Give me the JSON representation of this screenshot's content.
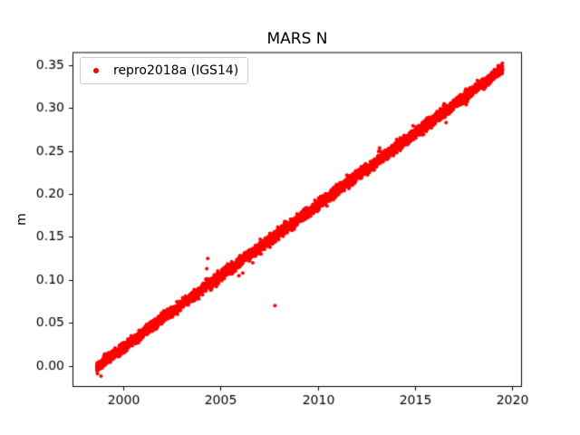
{
  "chart_data": {
    "type": "scatter",
    "title": "MARS N",
    "xlabel": "",
    "ylabel": "m",
    "grid": false,
    "legend_position": "upper-left",
    "legend": [
      {
        "label": "repro2018a (IGS14)",
        "color": "#ff0000",
        "marker": "dot"
      }
    ],
    "xlim": [
      1997.4,
      2020.5
    ],
    "ylim": [
      -0.0245,
      0.365
    ],
    "x_ticks": [
      {
        "value": 2000,
        "label": "2000"
      },
      {
        "value": 2005,
        "label": "2005"
      },
      {
        "value": 2010,
        "label": "2010"
      },
      {
        "value": 2015,
        "label": "2015"
      },
      {
        "value": 2020,
        "label": "2020"
      }
    ],
    "y_ticks": [
      {
        "value": 0.0,
        "label": "0.00"
      },
      {
        "value": 0.05,
        "label": "0.05"
      },
      {
        "value": 0.1,
        "label": "0.10"
      },
      {
        "value": 0.15,
        "label": "0.15"
      },
      {
        "value": 0.2,
        "label": "0.20"
      },
      {
        "value": 0.25,
        "label": "0.25"
      },
      {
        "value": 0.3,
        "label": "0.30"
      },
      {
        "value": 0.35,
        "label": "0.35"
      }
    ],
    "series": [
      {
        "name": "repro2018a (IGS14)",
        "color": "#ff0000",
        "marker_radius_px": 2,
        "model": "linear_trend_scatter",
        "x_start": 1998.65,
        "x_end": 2019.5,
        "y_start": -0.001,
        "y_end": 0.345,
        "slope_m_per_yr": 0.0166,
        "noise_std_m": 0.0026,
        "annual_amplitude_m": 0.0008,
        "n_points": 7200,
        "outliers": [
          [
            2004.3,
            0.113
          ],
          [
            2004.35,
            0.125
          ],
          [
            2005.95,
            0.105
          ],
          [
            2006.15,
            0.108
          ],
          [
            2007.8,
            0.07
          ],
          [
            2013.45,
            0.248
          ],
          [
            2016.6,
            0.283
          ]
        ]
      }
    ]
  }
}
